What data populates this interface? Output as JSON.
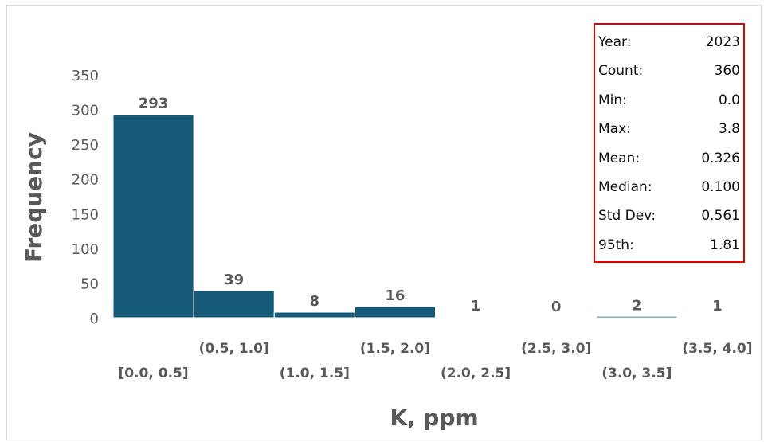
{
  "chart_data": {
    "type": "bar",
    "title": "",
    "xlabel": "K, ppm",
    "ylabel": "Frequency",
    "ylim": [
      0,
      350
    ],
    "yticks": [
      0,
      50,
      100,
      150,
      200,
      250,
      300,
      350
    ],
    "categories": [
      "[0.0, 0.5]",
      "(0.5, 1.0]",
      "(1.0, 1.5]",
      "(1.5, 2.0]",
      "(2.0, 2.5]",
      "(2.5, 3.0]",
      "(3.0, 3.5]",
      "(3.5, 4.0]"
    ],
    "values": [
      293,
      39,
      8,
      16,
      1,
      0,
      2,
      1
    ],
    "grid": false,
    "bar_color": "#165a7a"
  },
  "stats": [
    {
      "label": "Year:",
      "value": "2023"
    },
    {
      "label": "Count:",
      "value": "360"
    },
    {
      "label": "Min:",
      "value": "0.0"
    },
    {
      "label": "Max:",
      "value": "3.8"
    },
    {
      "label": "Mean:",
      "value": "0.326"
    },
    {
      "label": "Median:",
      "value": "0.100"
    },
    {
      "label": "Std Dev:",
      "value": "0.561"
    },
    {
      "label": "95th:",
      "value": "1.81"
    }
  ],
  "stats_border_color": "#e00000"
}
